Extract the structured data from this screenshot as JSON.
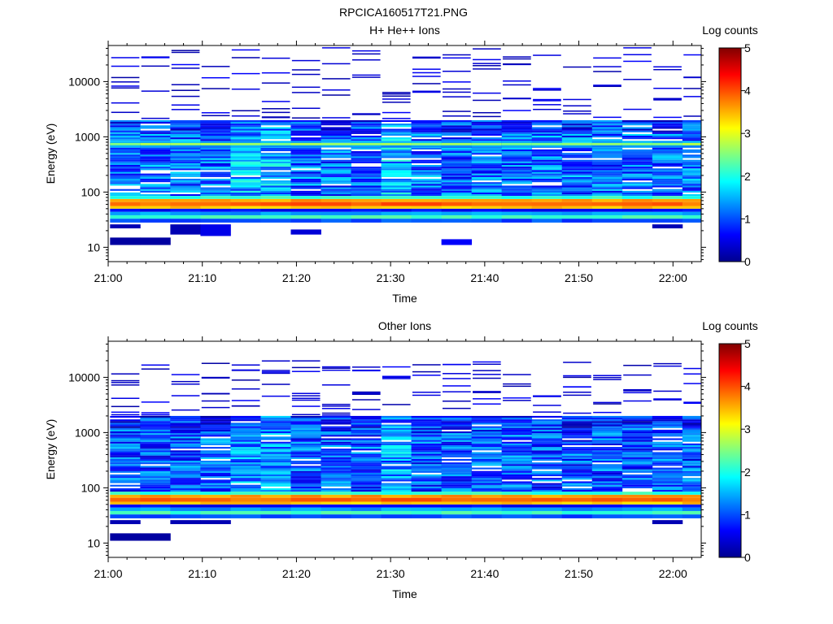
{
  "file_title": "RPCICA160517T21.PNG",
  "colors": {
    "colormap": [
      "#00008f",
      "#0000ff",
      "#0080ff",
      "#00ffff",
      "#80ff80",
      "#ffff00",
      "#ff8000",
      "#ff0000",
      "#800000"
    ]
  },
  "chart_data": [
    {
      "type": "heatmap",
      "title": "H+ He++ Ions",
      "xlabel": "Time",
      "ylabel": "Energy (eV)",
      "x_ticks": [
        "21:00",
        "21:10",
        "21:20",
        "21:30",
        "21:40",
        "21:50",
        "22:00"
      ],
      "x_range_minutes": [
        0,
        63
      ],
      "y_scale": "log",
      "y_ticks": [
        "10",
        "100",
        "1000",
        "10000"
      ],
      "y_range": [
        5.5,
        45000
      ],
      "colorbar": {
        "label": "Log counts",
        "ticks": [
          "0",
          "1",
          "2",
          "3",
          "4",
          "5"
        ],
        "range": [
          0,
          5
        ]
      },
      "column_width_minutes": 3.2,
      "time_bins_minutes": [
        0.2,
        3.4,
        6.6,
        9.8,
        13.0,
        16.2,
        19.4,
        22.6,
        25.8,
        29.0,
        32.2,
        35.4,
        38.6,
        41.8,
        45.0,
        48.2,
        51.4,
        54.6,
        57.8,
        61.0
      ],
      "bands": [
        {
          "from": 28,
          "to": 33,
          "level": 1.0
        },
        {
          "from": 33,
          "to": 38,
          "level": 2.2
        },
        {
          "from": 38,
          "to": 44,
          "level": 1.4
        },
        {
          "from": 44,
          "to": 50,
          "level": 0.6
        },
        {
          "from": 50,
          "to": 56,
          "level": 3.4
        },
        {
          "from": 56,
          "to": 66,
          "level": 3.9
        },
        {
          "from": 66,
          "to": 75,
          "level": 3.6
        },
        {
          "from": 75,
          "to": 85,
          "level": 2.1
        },
        {
          "from": 640,
          "to": 700,
          "level": 1.4
        },
        {
          "from": 700,
          "to": 780,
          "level": 2.6
        },
        {
          "from": 780,
          "to": 840,
          "level": 1.5
        }
      ],
      "continuum": {
        "from": 85,
        "to": 2000,
        "level": 1.1
      },
      "sparse_high": {
        "from": 2000,
        "to": 40000
      },
      "low_patches": [
        {
          "t0": 0.2,
          "t1": 3.4,
          "e0": 11,
          "e1": 15,
          "level": 0.1
        },
        {
          "t0": 3.4,
          "t1": 6.6,
          "e0": 11,
          "e1": 15,
          "level": 0.1
        },
        {
          "t0": 0.2,
          "t1": 3.4,
          "e0": 22,
          "e1": 26,
          "level": 0.2
        },
        {
          "t0": 6.6,
          "t1": 9.8,
          "e0": 17,
          "e1": 26,
          "level": 0.2
        },
        {
          "t0": 9.8,
          "t1": 13.0,
          "e0": 16,
          "e1": 26,
          "level": 0.5
        },
        {
          "t0": 19.4,
          "t1": 22.6,
          "e0": 17,
          "e1": 21,
          "level": 0.4
        },
        {
          "t0": 35.4,
          "t1": 38.6,
          "e0": 11,
          "e1": 14,
          "level": 0.6
        },
        {
          "t0": 57.8,
          "t1": 61.0,
          "e0": 22,
          "e1": 26,
          "level": 0.2
        }
      ],
      "seed": 7
    },
    {
      "type": "heatmap",
      "title": "Other Ions",
      "xlabel": "Time",
      "ylabel": "Energy (eV)",
      "x_ticks": [
        "21:00",
        "21:10",
        "21:20",
        "21:30",
        "21:40",
        "21:50",
        "22:00"
      ],
      "x_range_minutes": [
        0,
        63
      ],
      "y_scale": "log",
      "y_ticks": [
        "10",
        "100",
        "1000",
        "10000"
      ],
      "y_range": [
        5.5,
        45000
      ],
      "colorbar": {
        "label": "Log counts",
        "ticks": [
          "0",
          "1",
          "2",
          "3",
          "4",
          "5"
        ],
        "range": [
          0,
          5
        ]
      },
      "column_width_minutes": 3.2,
      "time_bins_minutes": [
        0.2,
        3.4,
        6.6,
        9.8,
        13.0,
        16.2,
        19.4,
        22.6,
        25.8,
        29.0,
        32.2,
        35.4,
        38.6,
        41.8,
        45.0,
        48.2,
        51.4,
        54.6,
        57.8,
        61.0
      ],
      "bands": [
        {
          "from": 28,
          "to": 33,
          "level": 1.0
        },
        {
          "from": 33,
          "to": 38,
          "level": 2.2
        },
        {
          "from": 38,
          "to": 44,
          "level": 1.4
        },
        {
          "from": 44,
          "to": 50,
          "level": 0.6
        },
        {
          "from": 50,
          "to": 56,
          "level": 3.4
        },
        {
          "from": 56,
          "to": 66,
          "level": 3.9
        },
        {
          "from": 66,
          "to": 75,
          "level": 3.6
        },
        {
          "from": 75,
          "to": 85,
          "level": 2.1
        }
      ],
      "continuum": {
        "from": 85,
        "to": 2000,
        "level": 1.0
      },
      "sparse_high": {
        "from": 2000,
        "to": 20000
      },
      "low_patches": [
        {
          "t0": 0.2,
          "t1": 3.4,
          "e0": 11,
          "e1": 15,
          "level": 0.1
        },
        {
          "t0": 3.4,
          "t1": 6.6,
          "e0": 11,
          "e1": 15,
          "level": 0.1
        },
        {
          "t0": 0.2,
          "t1": 3.4,
          "e0": 22,
          "e1": 26,
          "level": 0.2
        },
        {
          "t0": 6.6,
          "t1": 9.8,
          "e0": 22,
          "e1": 26,
          "level": 0.2
        },
        {
          "t0": 9.8,
          "t1": 13.0,
          "e0": 22,
          "e1": 26,
          "level": 0.2
        },
        {
          "t0": 57.8,
          "t1": 61.0,
          "e0": 22,
          "e1": 26,
          "level": 0.2
        }
      ],
      "seed": 19
    }
  ]
}
